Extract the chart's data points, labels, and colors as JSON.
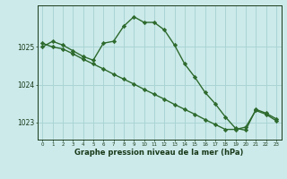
{
  "line1_x": [
    0,
    1,
    2,
    3,
    4,
    5,
    6,
    7,
    8,
    9,
    10,
    11,
    12,
    13,
    14,
    15,
    16,
    17,
    18,
    19,
    20,
    21,
    22,
    23
  ],
  "line1_y": [
    1025.0,
    1025.15,
    1025.05,
    1024.9,
    1024.75,
    1024.65,
    1025.1,
    1025.15,
    1025.55,
    1025.8,
    1025.65,
    1025.65,
    1025.45,
    1025.05,
    1024.55,
    1024.2,
    1023.8,
    1023.5,
    1023.15,
    1022.85,
    1022.8,
    1023.35,
    1023.25,
    1023.1
  ],
  "line2_x": [
    0,
    1,
    2,
    3,
    4,
    5,
    6,
    7,
    8,
    9,
    10,
    11,
    12,
    13,
    14,
    15,
    16,
    17,
    18,
    19,
    20,
    21,
    22,
    23
  ],
  "line2_y": [
    1025.1,
    1025.0,
    1024.95,
    1024.82,
    1024.68,
    1024.55,
    1024.42,
    1024.28,
    1024.15,
    1024.02,
    1023.88,
    1023.75,
    1023.62,
    1023.48,
    1023.35,
    1023.22,
    1023.08,
    1022.95,
    1022.82,
    1022.82,
    1022.88,
    1023.32,
    1023.22,
    1023.05
  ],
  "line_color": "#2d6a2d",
  "background_color": "#cceaea",
  "grid_color": "#aad4d4",
  "xlabel": "Graphe pression niveau de la mer (hPa)",
  "xlabel_color": "#1a3a1a",
  "tick_color": "#1a3a1a",
  "ylim": [
    1022.55,
    1026.1
  ],
  "yticks": [
    1023,
    1024,
    1025
  ],
  "xticks": [
    0,
    1,
    2,
    3,
    4,
    5,
    6,
    7,
    8,
    9,
    10,
    11,
    12,
    13,
    14,
    15,
    16,
    17,
    18,
    19,
    20,
    21,
    22,
    23
  ],
  "marker": "D",
  "markersize": 2.2,
  "linewidth": 1.0
}
